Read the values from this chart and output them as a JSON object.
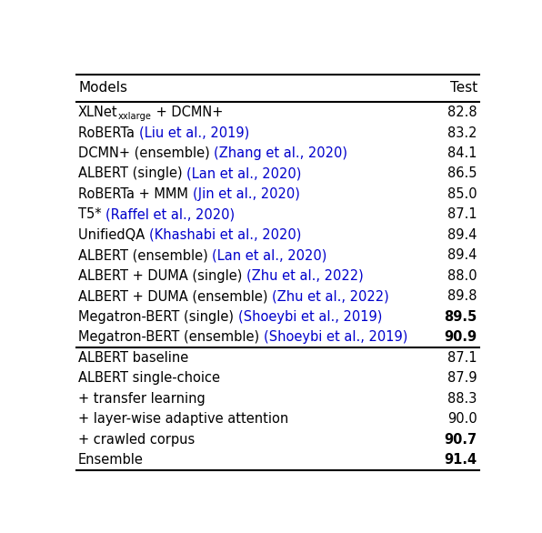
{
  "header": [
    "Models",
    "Test"
  ],
  "rows": [
    {
      "label": "XLNet",
      "subscript": "xxlarge",
      "suffix": " + DCMN+",
      "cite": "",
      "test": "82.8",
      "test_bold": false
    },
    {
      "label": "RoBERTa ",
      "subscript": "",
      "suffix": "",
      "cite": "(Liu et al., 2019)",
      "test": "83.2",
      "test_bold": false
    },
    {
      "label": "DCMN+ (ensemble) ",
      "subscript": "",
      "suffix": "",
      "cite": "(Zhang et al., 2020)",
      "test": "84.1",
      "test_bold": false
    },
    {
      "label": "ALBERT (single) ",
      "subscript": "",
      "suffix": "",
      "cite": "(Lan et al., 2020)",
      "test": "86.5",
      "test_bold": false
    },
    {
      "label": "RoBERTa + MMM ",
      "subscript": "",
      "suffix": "",
      "cite": "(Jin et al., 2020)",
      "test": "85.0",
      "test_bold": false
    },
    {
      "label": "T5* ",
      "subscript": "",
      "suffix": "",
      "cite": "(Raffel et al., 2020)",
      "test": "87.1",
      "test_bold": false
    },
    {
      "label": "UnifiedQA ",
      "subscript": "",
      "suffix": "",
      "cite": "(Khashabi et al., 2020)",
      "test": "89.4",
      "test_bold": false
    },
    {
      "label": "ALBERT (ensemble) ",
      "subscript": "",
      "suffix": "",
      "cite": "(Lan et al., 2020)",
      "test": "89.4",
      "test_bold": false
    },
    {
      "label": "ALBERT + DUMA (single) ",
      "subscript": "",
      "suffix": "",
      "cite": "(Zhu et al., 2022)",
      "test": "88.0",
      "test_bold": false
    },
    {
      "label": "ALBERT + DUMA (ensemble) ",
      "subscript": "",
      "suffix": "",
      "cite": "(Zhu et al., 2022)",
      "test": "89.8",
      "test_bold": false
    },
    {
      "label": "Megatron-BERT (single) ",
      "subscript": "",
      "suffix": "",
      "cite": "(Shoeybi et al., 2019)",
      "test": "89.5",
      "test_bold": true
    },
    {
      "label": "Megatron-BERT (ensemble) ",
      "subscript": "",
      "suffix": "",
      "cite": "(Shoeybi et al., 2019)",
      "test": "90.9",
      "test_bold": true
    },
    {
      "label": "ALBERT baseline",
      "subscript": "",
      "suffix": "",
      "cite": "",
      "test": "87.1",
      "test_bold": false,
      "section_break": true
    },
    {
      "label": "ALBERT single-choice",
      "subscript": "",
      "suffix": "",
      "cite": "",
      "test": "87.9",
      "test_bold": false
    },
    {
      "label": "+ transfer learning",
      "subscript": "",
      "suffix": "",
      "cite": "",
      "test": "88.3",
      "test_bold": false
    },
    {
      "label": "+ layer-wise adaptive attention",
      "subscript": "",
      "suffix": "",
      "cite": "",
      "test": "90.0",
      "test_bold": false
    },
    {
      "label": "+ crawled corpus",
      "subscript": "",
      "suffix": "",
      "cite": "",
      "test": "90.7",
      "test_bold": true
    },
    {
      "label": "Ensemble",
      "subscript": "",
      "suffix": "",
      "cite": "",
      "test": "91.4",
      "test_bold": true
    }
  ],
  "cite_color": "#0000CC",
  "normal_color": "#000000",
  "bg_color": "#FFFFFF",
  "section_break_index": 12,
  "font_size": 10.5,
  "header_font_size": 11.0,
  "fig_width": 5.96,
  "fig_height": 5.86,
  "dpi": 100
}
